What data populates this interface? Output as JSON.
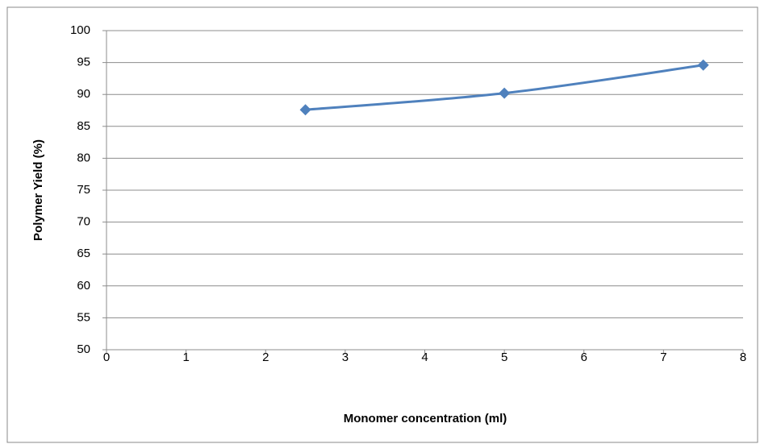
{
  "chart_data": {
    "type": "scatter_smooth_line",
    "x_label": "Monomer concentration (ml)",
    "y_label": "Polymer Yield (%)",
    "x": [
      2.5,
      5,
      7.5
    ],
    "values": [
      87.6,
      90.2,
      94.6
    ],
    "color": "#4f81bd",
    "xlim": [
      0,
      8
    ],
    "xticks": [
      0,
      1,
      2,
      3,
      4,
      5,
      6,
      7,
      8
    ],
    "ylim": [
      50,
      100
    ],
    "yticks": [
      50,
      55,
      60,
      65,
      70,
      75,
      80,
      85,
      90,
      95,
      100
    ],
    "grid": true
  }
}
